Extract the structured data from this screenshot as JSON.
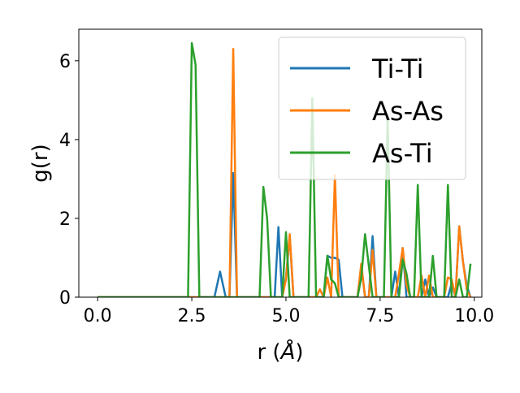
{
  "chart_data": {
    "type": "line",
    "title": "",
    "xlabel_prefix": "r (",
    "xlabel_unit": "Å",
    "xlabel_suffix": ")",
    "ylabel": "g(r)",
    "xlim": [
      -0.5,
      10.2
    ],
    "ylim": [
      0,
      6.8
    ],
    "xticks": [
      0.0,
      2.5,
      5.0,
      7.5,
      10.0
    ],
    "xtick_labels": [
      "0.0",
      "2.5",
      "5.0",
      "7.5",
      "10.0"
    ],
    "yticks": [
      0,
      2,
      4,
      6
    ],
    "ytick_labels": [
      "0",
      "2",
      "4",
      "6"
    ],
    "grid": false,
    "legend_position": "top-right",
    "series": [
      {
        "name": "Ti-Ti",
        "color": "#1f77b4",
        "x": [
          0.0,
          3.1,
          3.25,
          3.4,
          3.5,
          3.6,
          3.7,
          4.7,
          4.8,
          4.9,
          5.0,
          5.1,
          5.2,
          6.0,
          6.1,
          6.2,
          6.3,
          6.4,
          6.5,
          6.9,
          7.0,
          7.1,
          7.2,
          7.3,
          7.4,
          7.8,
          7.9,
          8.0,
          8.1,
          8.2,
          8.3,
          8.6,
          8.7,
          8.8,
          8.9,
          9.0,
          9.3,
          9.4,
          9.5,
          9.6,
          9.7,
          9.8,
          9.9
        ],
        "y": [
          0,
          0,
          0.65,
          0,
          0,
          3.15,
          0,
          0,
          1.78,
          0,
          0.5,
          1.55,
          0,
          0,
          1.05,
          1.0,
          1.0,
          0.95,
          0,
          0,
          0.8,
          0,
          0,
          1.55,
          0,
          0,
          0.65,
          0,
          1.25,
          0,
          0,
          0,
          0.45,
          0,
          0.25,
          0,
          0,
          0.35,
          0,
          1.8,
          0.9,
          0.3,
          0
        ]
      },
      {
        "name": "As-As",
        "color": "#ff7f0e",
        "x": [
          0.0,
          3.5,
          3.6,
          3.7,
          4.9,
          5.0,
          5.1,
          5.2,
          5.8,
          5.9,
          6.0,
          6.1,
          6.2,
          6.3,
          6.4,
          6.5,
          6.9,
          7.0,
          7.1,
          7.2,
          7.3,
          7.4,
          7.9,
          8.0,
          8.1,
          8.2,
          8.3,
          8.5,
          8.6,
          8.7,
          8.8,
          8.9,
          9.0,
          9.2,
          9.3,
          9.4,
          9.5,
          9.6,
          9.7,
          9.8,
          9.9
        ],
        "y": [
          0,
          0,
          6.3,
          0,
          0,
          0.45,
          1.6,
          0,
          0,
          0.2,
          0,
          0.5,
          0,
          3.1,
          0,
          0,
          0,
          0.85,
          0,
          0,
          1.2,
          0,
          0,
          0.6,
          1.25,
          0.3,
          0,
          0,
          0.55,
          0,
          0.55,
          0,
          0,
          0,
          0.5,
          0.45,
          0,
          1.8,
          0.9,
          0.2,
          0
        ]
      },
      {
        "name": "As-Ti",
        "color": "#2ca02c",
        "x": [
          0.0,
          2.4,
          2.5,
          2.6,
          2.7,
          4.3,
          4.4,
          4.5,
          4.6,
          4.9,
          5.0,
          5.1,
          5.6,
          5.7,
          5.8,
          6.0,
          6.1,
          6.2,
          6.3,
          6.4,
          6.9,
          7.0,
          7.1,
          7.2,
          7.3,
          7.6,
          7.7,
          7.8,
          8.0,
          8.1,
          8.2,
          8.3,
          8.4,
          8.5,
          8.6,
          8.8,
          8.9,
          9.0,
          9.2,
          9.3,
          9.4,
          9.5,
          9.6,
          9.7,
          9.8,
          9.9
        ],
        "y": [
          0,
          0,
          6.45,
          5.9,
          0,
          0,
          2.8,
          2.0,
          0,
          0,
          1.65,
          0,
          0,
          5.05,
          0,
          0,
          1.05,
          0.45,
          0.35,
          0,
          0,
          0.5,
          1.6,
          0.8,
          0,
          0,
          4.6,
          0,
          0,
          0.95,
          0.6,
          0,
          0,
          2.85,
          0,
          0,
          1.05,
          0,
          0,
          2.85,
          0,
          0,
          0.45,
          0,
          0,
          0.85
        ]
      }
    ]
  }
}
